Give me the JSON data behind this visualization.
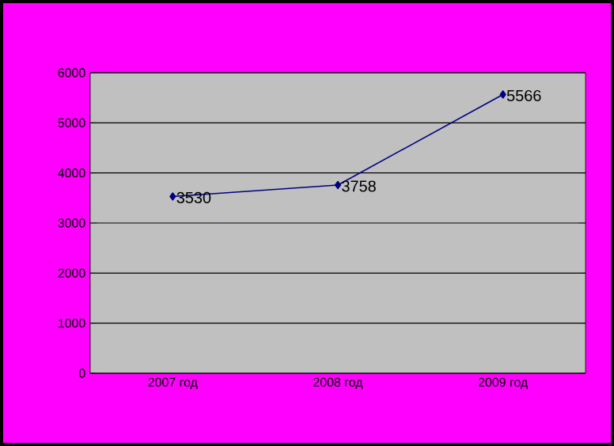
{
  "chart_data": {
    "type": "line",
    "categories": [
      "2007 год",
      "2008 год",
      "2009 год"
    ],
    "values": [
      3530,
      3758,
      5566
    ],
    "color": "#000080",
    "marker": "diamond",
    "line_style": "solid",
    "ylim": [
      0,
      6000
    ],
    "yticks": [
      0,
      1000,
      2000,
      3000,
      4000,
      5000,
      6000
    ],
    "grid": "y",
    "data_labels": true
  }
}
